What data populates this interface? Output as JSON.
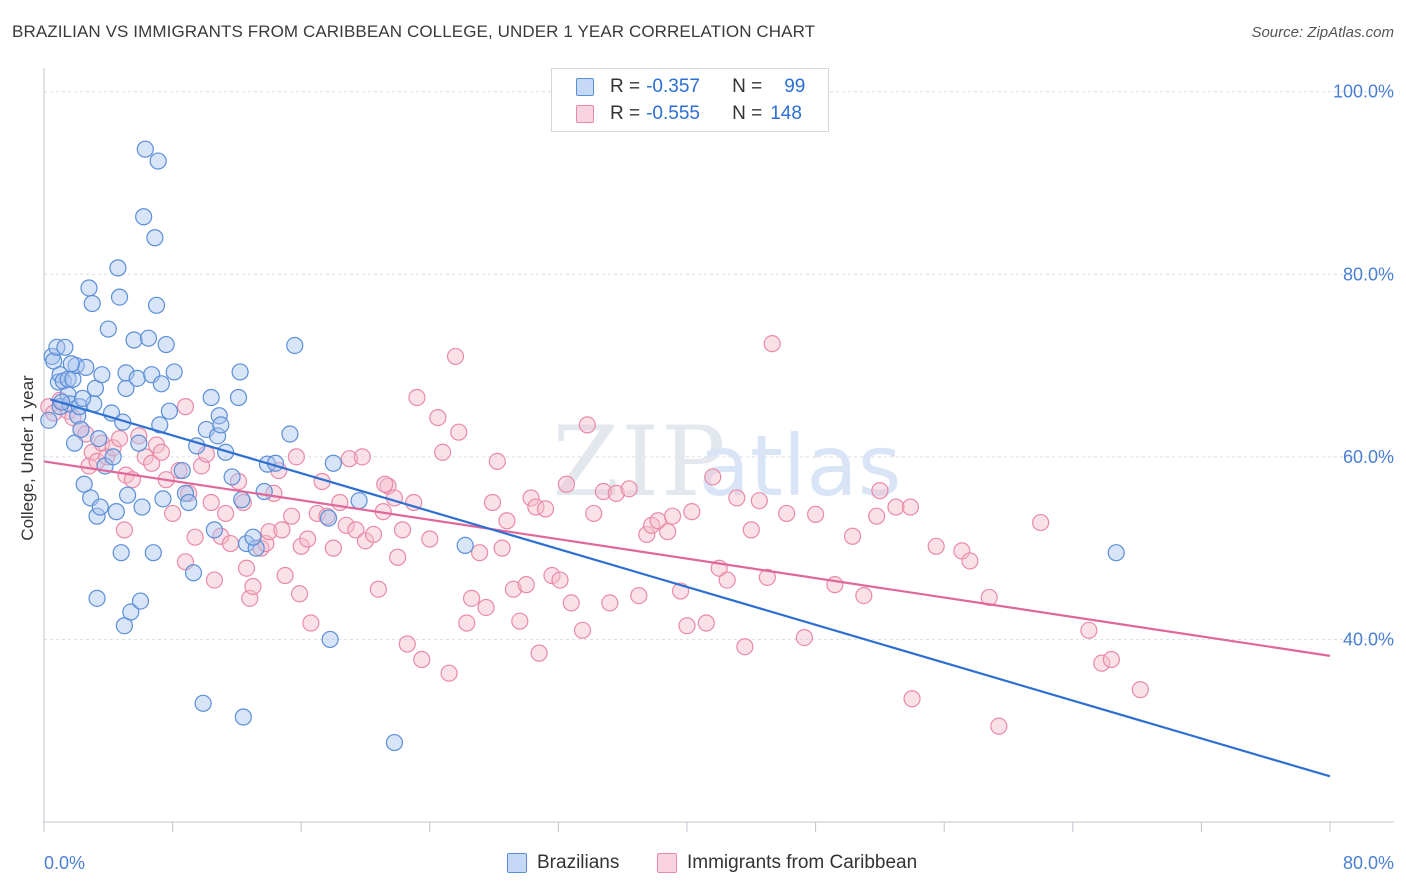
{
  "title": "BRAZILIAN VS IMMIGRANTS FROM CARIBBEAN COLLEGE, UNDER 1 YEAR CORRELATION CHART",
  "source": "Source: ZipAtlas.com",
  "watermark": "ZIPatlas",
  "colors": {
    "blue_fill": "#a9c4ee",
    "blue_stroke": "#5b8fd8",
    "blue_line": "#2e6fd2",
    "pink_fill": "#f5bccd",
    "pink_stroke": "#e98aa8",
    "pink_line": "#e0679a",
    "grid": "#d9dde3",
    "tick_text": "#4a7fd4"
  },
  "legend": {
    "blue": {
      "r_label": "R =",
      "r_value": "-0.357",
      "n_label": "N =",
      "n_value": "99"
    },
    "pink": {
      "r_label": "R =",
      "r_value": "-0.555",
      "n_label": "N =",
      "n_value": "148"
    }
  },
  "chart_data": {
    "type": "scatter",
    "title": "BRAZILIAN VS IMMIGRANTS FROM CARIBBEAN COLLEGE, UNDER 1 YEAR CORRELATION CHART",
    "xlabel": "",
    "ylabel": "College, Under 1 year",
    "xlim": [
      0,
      80
    ],
    "ylim": [
      20,
      102
    ],
    "x_tick_labels": [
      "0.0%",
      "80.0%"
    ],
    "y_tick_labels": [
      "100.0%",
      "80.0%",
      "60.0%",
      "40.0%"
    ],
    "y_ticks": [
      100,
      80,
      60,
      40
    ],
    "grid": true,
    "legend_position": "bottom",
    "series": [
      {
        "name": "Brazilians",
        "color": "#5b8fd8",
        "trend": {
          "x": [
            0,
            80
          ],
          "y": [
            66.5,
            25.0
          ]
        },
        "points": [
          [
            0.3,
            64.0
          ],
          [
            0.5,
            71.0
          ],
          [
            0.6,
            70.5
          ],
          [
            0.8,
            72.0
          ],
          [
            0.9,
            68.2
          ],
          [
            1.0,
            65.5
          ],
          [
            1.0,
            69.0
          ],
          [
            1.2,
            68.3
          ],
          [
            1.3,
            72.0
          ],
          [
            1.5,
            66.8
          ],
          [
            1.5,
            68.5
          ],
          [
            1.6,
            65.8
          ],
          [
            1.8,
            68.5
          ],
          [
            1.9,
            61.5
          ],
          [
            2.0,
            70.0
          ],
          [
            2.1,
            64.5
          ],
          [
            2.2,
            65.5
          ],
          [
            2.3,
            63.0
          ],
          [
            2.5,
            57.0
          ],
          [
            2.6,
            69.8
          ],
          [
            2.8,
            78.5
          ],
          [
            2.9,
            55.5
          ],
          [
            3.0,
            76.8
          ],
          [
            3.1,
            65.8
          ],
          [
            3.2,
            67.5
          ],
          [
            3.3,
            44.5
          ],
          [
            3.3,
            53.5
          ],
          [
            3.5,
            54.5
          ],
          [
            3.6,
            69.0
          ],
          [
            3.8,
            59.0
          ],
          [
            4.0,
            74.0
          ],
          [
            4.2,
            64.8
          ],
          [
            4.3,
            60.0
          ],
          [
            4.5,
            54.0
          ],
          [
            4.6,
            80.7
          ],
          [
            4.7,
            77.5
          ],
          [
            4.8,
            49.5
          ],
          [
            5.0,
            41.5
          ],
          [
            5.1,
            67.5
          ],
          [
            5.1,
            69.2
          ],
          [
            5.2,
            55.8
          ],
          [
            5.4,
            43.0
          ],
          [
            5.6,
            72.8
          ],
          [
            5.8,
            68.6
          ],
          [
            5.9,
            61.5
          ],
          [
            6.0,
            44.2
          ],
          [
            6.1,
            54.5
          ],
          [
            6.2,
            86.3
          ],
          [
            6.3,
            93.7
          ],
          [
            6.5,
            73.0
          ],
          [
            6.7,
            69.0
          ],
          [
            6.8,
            49.5
          ],
          [
            6.9,
            84.0
          ],
          [
            7.0,
            76.6
          ],
          [
            7.1,
            92.4
          ],
          [
            7.2,
            63.5
          ],
          [
            7.3,
            68.0
          ],
          [
            7.4,
            55.4
          ],
          [
            7.6,
            72.3
          ],
          [
            8.1,
            69.3
          ],
          [
            8.6,
            58.5
          ],
          [
            8.8,
            56.0
          ],
          [
            9.0,
            55.0
          ],
          [
            9.3,
            47.3
          ],
          [
            9.9,
            33.0
          ],
          [
            10.1,
            63.0
          ],
          [
            10.4,
            66.5
          ],
          [
            10.6,
            52.0
          ],
          [
            10.8,
            62.3
          ],
          [
            10.9,
            64.5
          ],
          [
            11.0,
            63.5
          ],
          [
            11.3,
            60.5
          ],
          [
            12.1,
            66.5
          ],
          [
            12.2,
            69.3
          ],
          [
            12.3,
            55.3
          ],
          [
            12.4,
            31.5
          ],
          [
            12.6,
            50.5
          ],
          [
            13.2,
            50.0
          ],
          [
            13.7,
            56.2
          ],
          [
            13.9,
            59.2
          ],
          [
            14.4,
            59.3
          ],
          [
            15.3,
            62.5
          ],
          [
            15.6,
            72.2
          ],
          [
            17.7,
            53.3
          ],
          [
            17.8,
            40.0
          ],
          [
            18.0,
            59.3
          ],
          [
            19.6,
            55.2
          ],
          [
            21.8,
            28.7
          ],
          [
            26.2,
            50.3
          ],
          [
            66.7,
            49.5
          ],
          [
            1.1,
            66.0
          ],
          [
            1.7,
            70.2
          ],
          [
            2.4,
            66.4
          ],
          [
            3.4,
            62.0
          ],
          [
            4.9,
            63.8
          ],
          [
            7.8,
            65.0
          ],
          [
            9.5,
            61.2
          ],
          [
            11.7,
            57.8
          ],
          [
            13.0,
            51.2
          ]
        ]
      },
      {
        "name": "Immigrants from Caribbean",
        "color": "#e98aa8",
        "trend": {
          "x": [
            0,
            80
          ],
          "y": [
            59.5,
            38.2
          ]
        },
        "points": [
          [
            0.3,
            65.5
          ],
          [
            0.6,
            64.8
          ],
          [
            1.0,
            66.2
          ],
          [
            1.5,
            65.0
          ],
          [
            1.8,
            64.3
          ],
          [
            2.3,
            63.0
          ],
          [
            2.6,
            62.5
          ],
          [
            2.8,
            59.0
          ],
          [
            3.0,
            60.5
          ],
          [
            3.3,
            59.5
          ],
          [
            3.6,
            61.5
          ],
          [
            3.9,
            60.0
          ],
          [
            4.3,
            61.0
          ],
          [
            4.7,
            62.0
          ],
          [
            5.1,
            58.0
          ],
          [
            5.5,
            57.5
          ],
          [
            5.9,
            62.3
          ],
          [
            6.3,
            60.0
          ],
          [
            6.7,
            59.3
          ],
          [
            7.0,
            61.3
          ],
          [
            7.3,
            60.5
          ],
          [
            7.6,
            57.5
          ],
          [
            8.0,
            53.8
          ],
          [
            8.4,
            58.5
          ],
          [
            8.8,
            65.5
          ],
          [
            9.0,
            56.0
          ],
          [
            9.4,
            51.2
          ],
          [
            9.8,
            59.0
          ],
          [
            10.1,
            60.3
          ],
          [
            10.4,
            55.0
          ],
          [
            10.6,
            46.5
          ],
          [
            11.0,
            51.3
          ],
          [
            11.3,
            53.8
          ],
          [
            11.6,
            50.5
          ],
          [
            12.1,
            57.3
          ],
          [
            12.4,
            55.0
          ],
          [
            12.6,
            47.8
          ],
          [
            12.8,
            44.5
          ],
          [
            13.0,
            45.8
          ],
          [
            13.5,
            50.0
          ],
          [
            13.8,
            50.5
          ],
          [
            14.0,
            51.8
          ],
          [
            14.3,
            56.0
          ],
          [
            14.6,
            58.5
          ],
          [
            14.8,
            52.0
          ],
          [
            15.0,
            47.0
          ],
          [
            15.4,
            53.5
          ],
          [
            15.7,
            60.0
          ],
          [
            16.0,
            50.2
          ],
          [
            16.4,
            51.0
          ],
          [
            16.6,
            41.8
          ],
          [
            17.0,
            53.8
          ],
          [
            17.3,
            57.3
          ],
          [
            17.6,
            53.5
          ],
          [
            18.0,
            50.0
          ],
          [
            18.4,
            55.0
          ],
          [
            18.8,
            52.5
          ],
          [
            19.0,
            59.8
          ],
          [
            19.4,
            52.0
          ],
          [
            19.8,
            60.0
          ],
          [
            20.0,
            50.8
          ],
          [
            20.5,
            51.5
          ],
          [
            20.8,
            45.5
          ],
          [
            21.1,
            54.0
          ],
          [
            21.4,
            56.8
          ],
          [
            21.8,
            55.5
          ],
          [
            22.0,
            49.0
          ],
          [
            22.3,
            52.0
          ],
          [
            22.6,
            39.5
          ],
          [
            23.0,
            55.0
          ],
          [
            23.2,
            66.5
          ],
          [
            23.5,
            37.8
          ],
          [
            24.0,
            51.0
          ],
          [
            24.5,
            64.3
          ],
          [
            24.8,
            60.5
          ],
          [
            25.2,
            36.3
          ],
          [
            25.6,
            71.0
          ],
          [
            25.8,
            62.7
          ],
          [
            26.3,
            41.8
          ],
          [
            26.6,
            44.5
          ],
          [
            27.1,
            49.5
          ],
          [
            27.5,
            43.5
          ],
          [
            27.9,
            55.0
          ],
          [
            28.2,
            59.5
          ],
          [
            28.5,
            50.0
          ],
          [
            28.8,
            53.0
          ],
          [
            29.2,
            45.5
          ],
          [
            29.6,
            42.0
          ],
          [
            30.0,
            46.0
          ],
          [
            30.3,
            55.5
          ],
          [
            30.6,
            54.5
          ],
          [
            31.2,
            54.3
          ],
          [
            31.6,
            47.0
          ],
          [
            32.1,
            46.5
          ],
          [
            32.5,
            57.0
          ],
          [
            32.8,
            44.0
          ],
          [
            33.5,
            41.0
          ],
          [
            33.8,
            63.5
          ],
          [
            34.2,
            53.8
          ],
          [
            34.8,
            56.2
          ],
          [
            35.2,
            44.0
          ],
          [
            35.6,
            56.0
          ],
          [
            36.4,
            56.5
          ],
          [
            37.0,
            44.8
          ],
          [
            37.5,
            51.5
          ],
          [
            37.8,
            52.5
          ],
          [
            38.2,
            53.0
          ],
          [
            38.8,
            51.8
          ],
          [
            39.1,
            53.5
          ],
          [
            39.6,
            45.3
          ],
          [
            40.0,
            41.5
          ],
          [
            40.3,
            54.0
          ],
          [
            41.2,
            41.8
          ],
          [
            41.6,
            57.8
          ],
          [
            42.0,
            47.8
          ],
          [
            42.5,
            46.5
          ],
          [
            43.1,
            55.5
          ],
          [
            43.6,
            39.2
          ],
          [
            44.0,
            52.0
          ],
          [
            44.5,
            55.2
          ],
          [
            45.0,
            46.8
          ],
          [
            45.3,
            72.4
          ],
          [
            46.2,
            53.8
          ],
          [
            47.3,
            40.2
          ],
          [
            48.0,
            53.7
          ],
          [
            49.2,
            46.0
          ],
          [
            50.3,
            51.3
          ],
          [
            51.0,
            44.8
          ],
          [
            51.8,
            53.5
          ],
          [
            52.0,
            56.3
          ],
          [
            53.0,
            54.5
          ],
          [
            53.9,
            54.5
          ],
          [
            54.0,
            33.5
          ],
          [
            55.5,
            50.2
          ],
          [
            57.1,
            49.7
          ],
          [
            57.6,
            48.6
          ],
          [
            58.8,
            44.6
          ],
          [
            59.4,
            30.5
          ],
          [
            62.0,
            52.8
          ],
          [
            65.0,
            41.0
          ],
          [
            65.8,
            37.4
          ],
          [
            66.4,
            37.8
          ],
          [
            68.2,
            34.5
          ],
          [
            5.0,
            52.0
          ],
          [
            8.8,
            48.5
          ],
          [
            15.9,
            45.0
          ],
          [
            21.2,
            57.0
          ],
          [
            30.8,
            38.5
          ]
        ]
      }
    ]
  }
}
